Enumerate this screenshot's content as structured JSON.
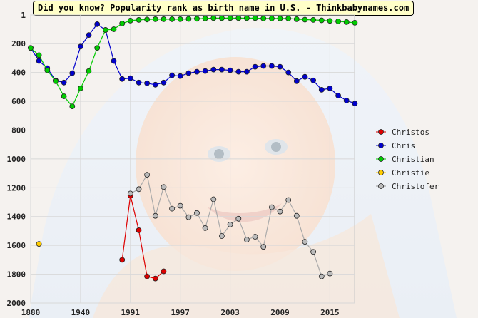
{
  "title": "Did you know? Popularity rank as birth name in U.S. - Thinkbabynames.com",
  "chart_data": {
    "type": "line",
    "title": "Did you know? Popularity rank as birth name in U.S. - Thinkbabynames.com",
    "xlabel": "",
    "ylabel": "",
    "x_ticks": [
      "1880",
      "1940",
      "1991",
      "1997",
      "2003",
      "2009",
      "2015"
    ],
    "y_ticks": [
      "1",
      "200",
      "400",
      "600",
      "800",
      "1000",
      "1200",
      "1400",
      "1600",
      "1800",
      "2000"
    ],
    "ylim": [
      1,
      2000
    ],
    "y_inverted": true,
    "grid": true,
    "legend_position": "right",
    "series": [
      {
        "name": "Christos",
        "color": "#dd0000",
        "points": [
          [
            11,
            1700
          ],
          [
            12,
            1255
          ],
          [
            13,
            1495
          ],
          [
            14,
            1815
          ],
          [
            15,
            1830
          ],
          [
            16,
            1780
          ]
        ]
      },
      {
        "name": "Chris",
        "color": "#0000cc",
        "points": [
          [
            0,
            230
          ],
          [
            1,
            320
          ],
          [
            2,
            370
          ],
          [
            3,
            455
          ],
          [
            4,
            470
          ],
          [
            5,
            405
          ],
          [
            6,
            220
          ],
          [
            7,
            140
          ],
          [
            8,
            65
          ],
          [
            9,
            105
          ],
          [
            10,
            320
          ],
          [
            11,
            445
          ],
          [
            12,
            440
          ],
          [
            13,
            470
          ],
          [
            14,
            475
          ],
          [
            15,
            485
          ],
          [
            16,
            470
          ],
          [
            17,
            420
          ],
          [
            18,
            425
          ],
          [
            19,
            405
          ],
          [
            20,
            395
          ],
          [
            21,
            390
          ],
          [
            22,
            380
          ],
          [
            23,
            380
          ],
          [
            24,
            385
          ],
          [
            25,
            395
          ],
          [
            26,
            395
          ],
          [
            27,
            360
          ],
          [
            28,
            355
          ],
          [
            29,
            355
          ],
          [
            30,
            360
          ],
          [
            31,
            400
          ],
          [
            32,
            460
          ],
          [
            33,
            430
          ],
          [
            34,
            455
          ],
          [
            35,
            520
          ],
          [
            36,
            510
          ],
          [
            37,
            560
          ],
          [
            38,
            595
          ],
          [
            39,
            615
          ]
        ]
      },
      {
        "name": "Christian",
        "color": "#00cc00",
        "points": [
          [
            0,
            230
          ],
          [
            1,
            280
          ],
          [
            2,
            385
          ],
          [
            3,
            460
          ],
          [
            4,
            565
          ],
          [
            5,
            635
          ],
          [
            6,
            510
          ],
          [
            7,
            390
          ],
          [
            8,
            230
          ],
          [
            9,
            105
          ],
          [
            10,
            100
          ],
          [
            11,
            60
          ],
          [
            12,
            40
          ],
          [
            13,
            35
          ],
          [
            14,
            32
          ],
          [
            15,
            30
          ],
          [
            16,
            30
          ],
          [
            17,
            30
          ],
          [
            18,
            30
          ],
          [
            19,
            28
          ],
          [
            20,
            27
          ],
          [
            21,
            25
          ],
          [
            22,
            23
          ],
          [
            23,
            23
          ],
          [
            24,
            23
          ],
          [
            25,
            23
          ],
          [
            26,
            23
          ],
          [
            27,
            23
          ],
          [
            28,
            25
          ],
          [
            29,
            25
          ],
          [
            30,
            25
          ],
          [
            31,
            25
          ],
          [
            32,
            30
          ],
          [
            33,
            33
          ],
          [
            34,
            35
          ],
          [
            35,
            38
          ],
          [
            36,
            42
          ],
          [
            37,
            45
          ],
          [
            38,
            50
          ],
          [
            39,
            55
          ]
        ]
      },
      {
        "name": "Christie",
        "color": "#ffcc00",
        "points": [
          [
            1,
            1590
          ]
        ]
      },
      {
        "name": "Christofer",
        "color": "#bbbbbb",
        "points": [
          [
            12,
            1240
          ],
          [
            13,
            1210
          ],
          [
            14,
            1110
          ],
          [
            15,
            1395
          ],
          [
            16,
            1195
          ],
          [
            17,
            1345
          ],
          [
            18,
            1325
          ],
          [
            19,
            1405
          ],
          [
            20,
            1375
          ],
          [
            21,
            1480
          ],
          [
            22,
            1280
          ],
          [
            23,
            1535
          ],
          [
            24,
            1455
          ],
          [
            25,
            1415
          ],
          [
            26,
            1560
          ],
          [
            27,
            1540
          ],
          [
            28,
            1610
          ],
          [
            29,
            1335
          ],
          [
            30,
            1365
          ],
          [
            31,
            1285
          ],
          [
            32,
            1395
          ],
          [
            33,
            1575
          ],
          [
            34,
            1645
          ],
          [
            35,
            1815
          ],
          [
            36,
            1795
          ]
        ]
      }
    ]
  }
}
